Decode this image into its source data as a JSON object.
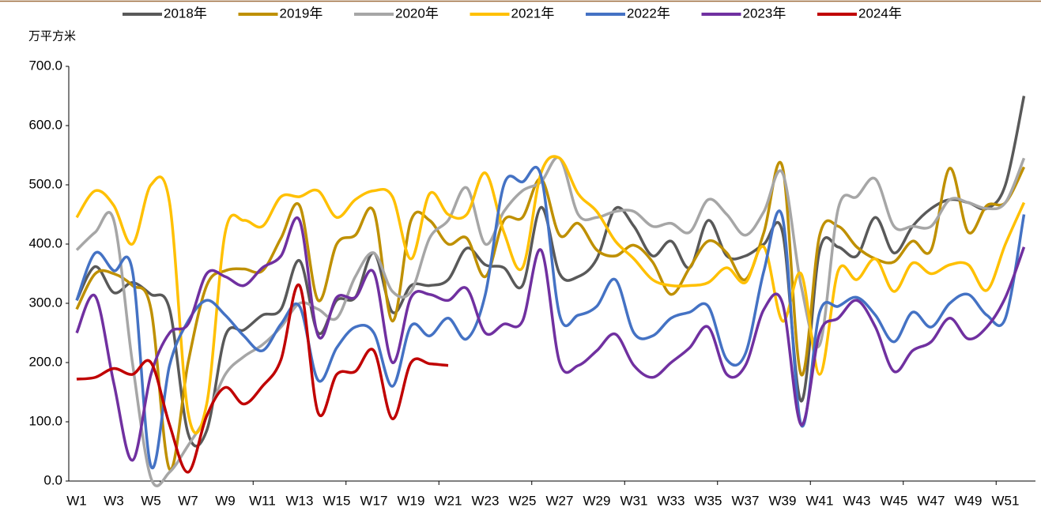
{
  "chart_data": {
    "type": "line",
    "y_label": "万平方米",
    "categories": [
      "W1",
      null,
      "W3",
      null,
      "W5",
      null,
      "W7",
      null,
      "W9",
      null,
      "W11",
      null,
      "W13",
      null,
      "W15",
      null,
      "W17",
      null,
      "W19",
      null,
      "W21",
      null,
      "W23",
      null,
      "W25",
      null,
      "W27",
      null,
      "W29",
      null,
      "W31",
      null,
      "W33",
      null,
      "W35",
      null,
      "W37",
      null,
      "W39",
      null,
      "W41",
      null,
      "W43",
      null,
      "W45",
      null,
      "W47",
      null,
      "W49",
      null,
      "W51",
      null
    ],
    "ylim": [
      0,
      700
    ],
    "yticks": [
      {
        "value": 0,
        "label": "0.0"
      },
      {
        "value": 100,
        "label": "100.0"
      },
      {
        "value": 200,
        "label": "200.0"
      },
      {
        "value": 300,
        "label": "300.0"
      },
      {
        "value": 400,
        "label": "400.0"
      },
      {
        "value": 500,
        "label": "500.0"
      },
      {
        "value": 600,
        "label": "600.0"
      },
      {
        "value": 700,
        "label": "700.0"
      }
    ],
    "grid": false,
    "legend": "top",
    "series": [
      {
        "name": "2018年",
        "color": "#595959",
        "values": [
          305,
          362,
          318,
          335,
          315,
          290,
          80,
          85,
          245,
          255,
          280,
          290,
          372,
          250,
          305,
          310,
          385,
          285,
          330,
          330,
          340,
          393,
          365,
          360,
          330,
          462,
          350,
          345,
          375,
          460,
          430,
          380,
          405,
          360,
          440,
          380,
          380,
          400,
          420,
          135,
          390,
          395,
          380,
          445,
          385,
          430,
          460,
          475,
          470,
          460,
          500,
          650
        ]
      },
      {
        "name": "2019年",
        "color": "#BF9000",
        "values": [
          290,
          350,
          350,
          330,
          290,
          20,
          200,
          330,
          355,
          358,
          355,
          410,
          465,
          305,
          400,
          415,
          455,
          270,
          440,
          440,
          400,
          410,
          345,
          440,
          445,
          510,
          415,
          435,
          390,
          380,
          398,
          370,
          315,
          360,
          405,
          385,
          340,
          420,
          530,
          180,
          415,
          430,
          395,
          375,
          370,
          405,
          390,
          528,
          420,
          465,
          470,
          530
        ]
      },
      {
        "name": "2020年",
        "color": "#A6A6A6",
        "values": [
          390,
          420,
          440,
          200,
          5,
          15,
          60,
          110,
          180,
          210,
          230,
          260,
          300,
          290,
          275,
          345,
          385,
          320,
          320,
          410,
          440,
          495,
          400,
          455,
          490,
          505,
          545,
          450,
          445,
          455,
          455,
          430,
          435,
          420,
          475,
          450,
          415,
          455,
          520,
          330,
          230,
          460,
          480,
          510,
          430,
          430,
          430,
          475,
          470,
          460,
          470,
          545
        ]
      },
      {
        "name": "2021年",
        "color": "#FFC000",
        "values": [
          445,
          490,
          465,
          400,
          500,
          470,
          115,
          130,
          420,
          440,
          430,
          480,
          480,
          490,
          445,
          475,
          490,
          480,
          375,
          485,
          450,
          450,
          520,
          420,
          360,
          520,
          545,
          485,
          455,
          405,
          375,
          340,
          330,
          330,
          335,
          360,
          335,
          395,
          270,
          350,
          180,
          355,
          340,
          375,
          320,
          368,
          350,
          365,
          365,
          322,
          400,
          470
        ]
      },
      {
        "name": "2022年",
        "color": "#4472C4",
        "values": [
          305,
          385,
          355,
          355,
          25,
          195,
          270,
          305,
          280,
          245,
          220,
          265,
          295,
          170,
          225,
          260,
          250,
          160,
          262,
          245,
          275,
          240,
          315,
          500,
          505,
          515,
          280,
          280,
          295,
          340,
          250,
          245,
          275,
          285,
          295,
          205,
          215,
          355,
          445,
          95,
          285,
          295,
          310,
          280,
          235,
          285,
          260,
          300,
          315,
          280,
          275,
          450
        ]
      },
      {
        "name": "2023年",
        "color": "#7030A0",
        "values": [
          250,
          312,
          165,
          35,
          180,
          250,
          265,
          350,
          345,
          330,
          360,
          380,
          440,
          245,
          310,
          310,
          352,
          200,
          310,
          315,
          305,
          325,
          250,
          265,
          270,
          390,
          200,
          195,
          220,
          248,
          195,
          175,
          200,
          225,
          260,
          180,
          195,
          290,
          300,
          95,
          250,
          275,
          305,
          260,
          185,
          220,
          235,
          275,
          240,
          260,
          310,
          395
        ]
      },
      {
        "name": "2024年",
        "color": "#C00000",
        "values": [
          172,
          175,
          190,
          180,
          200,
          95,
          15,
          110,
          158,
          130,
          160,
          205,
          330,
          115,
          180,
          185,
          220,
          105,
          200,
          198,
          195,
          null,
          null,
          null,
          null,
          null,
          null,
          null,
          null,
          null,
          null,
          null,
          null,
          null,
          null,
          null,
          null,
          null,
          null,
          null,
          null,
          null,
          null,
          null,
          null,
          null,
          null,
          null,
          null,
          null,
          null,
          null
        ]
      }
    ]
  }
}
